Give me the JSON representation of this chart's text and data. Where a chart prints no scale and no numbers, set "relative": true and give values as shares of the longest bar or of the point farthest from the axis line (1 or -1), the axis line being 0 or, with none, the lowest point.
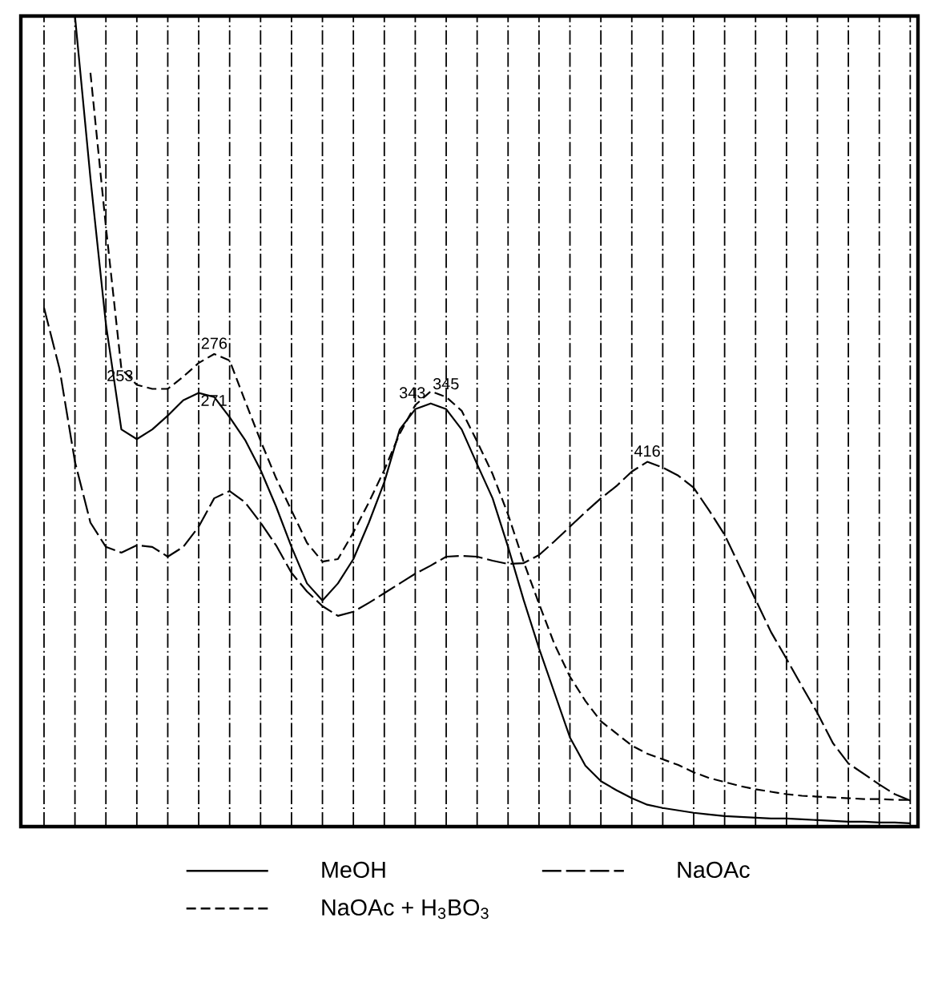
{
  "chart_data": {
    "type": "line",
    "relative": true,
    "grid": "x",
    "legend": "bottom",
    "marker": "none",
    "categories": [
      null,
      null,
      null,
      null,
      null,
      null,
      null,
      null,
      null,
      null,
      null,
      null,
      null,
      null,
      null,
      null,
      null,
      null,
      null,
      null,
      null,
      null,
      null,
      null,
      null,
      null,
      null,
      null,
      null,
      null,
      null,
      null,
      null,
      null,
      null,
      null,
      null,
      null,
      null,
      null,
      null,
      null,
      null,
      null,
      null,
      null,
      null,
      null,
      null,
      null,
      null,
      null,
      null,
      null,
      null,
      null,
      null,
      null
    ],
    "series": [
      {
        "name": "MeOH",
        "color": "#000000",
        "line_style": "solid",
        "values": [
          null,
          null,
          null,
          1.0,
          0.8,
          0.62,
          0.49,
          0.478,
          0.49,
          0.507,
          0.526,
          0.535,
          0.53,
          0.505,
          0.477,
          0.44,
          0.395,
          0.345,
          0.3,
          0.279,
          0.3,
          0.33,
          0.375,
          0.425,
          0.49,
          0.515,
          0.522,
          0.515,
          0.49,
          0.447,
          0.405,
          0.345,
          0.28,
          0.22,
          0.165,
          0.11,
          0.075,
          0.056,
          0.045,
          0.035,
          0.027,
          0.023,
          0.02,
          0.017,
          0.015,
          0.013,
          0.012,
          0.011,
          0.01,
          0.01,
          0.009,
          0.008,
          0.007,
          0.006,
          0.006,
          0.005,
          0.005,
          0.004
        ]
      },
      {
        "name": "NaOAc",
        "color": "#000000",
        "line_style": "dashed",
        "values": [
          null,
          0.64,
          0.565,
          0.45,
          0.375,
          0.345,
          0.338,
          0.347,
          0.345,
          0.333,
          0.345,
          0.37,
          0.405,
          0.414,
          0.4,
          0.375,
          0.347,
          0.313,
          0.29,
          0.272,
          0.26,
          0.265,
          0.276,
          0.288,
          0.3,
          0.312,
          0.322,
          0.333,
          0.334,
          0.333,
          0.328,
          0.324,
          0.325,
          0.335,
          0.352,
          0.37,
          0.388,
          0.405,
          0.42,
          0.438,
          0.45,
          0.443,
          0.433,
          0.418,
          0.39,
          0.36,
          0.32,
          0.28,
          0.24,
          0.207,
          0.173,
          0.14,
          0.103,
          0.078,
          0.065,
          0.052,
          0.04,
          0.032
        ]
      },
      {
        "name": "NaOAc + H$_{3}$BO$_{3}$",
        "color": "#000000",
        "line_style": "dashed",
        "values": [
          null,
          null,
          null,
          null,
          0.93,
          0.74,
          0.565,
          0.545,
          0.54,
          0.54,
          0.555,
          0.572,
          0.583,
          0.575,
          0.525,
          0.476,
          0.43,
          0.39,
          0.35,
          0.327,
          0.33,
          0.363,
          0.4,
          0.44,
          0.485,
          0.52,
          0.537,
          0.53,
          0.513,
          0.475,
          0.435,
          0.385,
          0.327,
          0.275,
          0.225,
          0.185,
          0.155,
          0.13,
          0.115,
          0.1,
          0.09,
          0.083,
          0.076,
          0.067,
          0.06,
          0.055,
          0.05,
          0.046,
          0.043,
          0.04,
          0.038,
          0.037,
          0.036,
          0.035,
          0.034,
          0.034,
          0.033,
          0.033
        ]
      }
    ],
    "annotations": [
      "253",
      "276",
      "271",
      "343",
      "345",
      "416"
    ]
  }
}
